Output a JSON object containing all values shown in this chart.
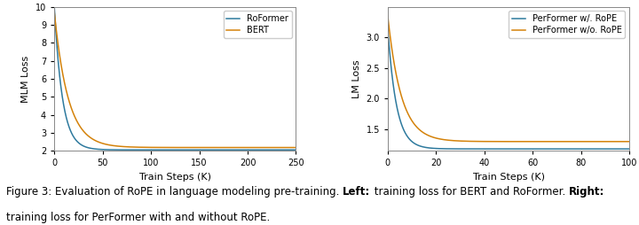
{
  "left": {
    "xlabel": "Train Steps (K)",
    "ylabel": "MLM Loss",
    "xlim": [
      0,
      250
    ],
    "ylim": [
      2,
      10
    ],
    "yticks": [
      2,
      3,
      4,
      5,
      6,
      7,
      8,
      9,
      10
    ],
    "xticks": [
      0,
      50,
      100,
      150,
      200,
      250
    ],
    "series": [
      {
        "label": "RoFormer",
        "color": "#2e7a9e",
        "y_start": 10.0,
        "decay_k": 0.12,
        "asymptote": 2.05
      },
      {
        "label": "BERT",
        "color": "#d4820a",
        "y_start": 9.7,
        "decay_k": 0.07,
        "asymptote": 2.18
      }
    ]
  },
  "right": {
    "xlabel": "Train Steps (K)",
    "ylabel": "LM Loss",
    "xlim": [
      0,
      100
    ],
    "ylim": [
      1.15,
      3.5
    ],
    "yticks": [
      1.5,
      2.0,
      2.5,
      3.0
    ],
    "xticks": [
      0,
      20,
      40,
      60,
      80,
      100
    ],
    "series": [
      {
        "label": "PerFormer w/. RoPE",
        "color": "#2e7a9e",
        "y_start": 3.15,
        "decay_k": 0.28,
        "asymptote": 1.18
      },
      {
        "label": "PerFormer w/o. RoPE",
        "color": "#d4820a",
        "y_start": 3.35,
        "decay_k": 0.18,
        "asymptote": 1.3
      }
    ]
  },
  "caption_normal1": "Figure 3: Evaluation of RoPE in language modeling pre-training. ",
  "caption_bold1": "Left:",
  "caption_normal2": " training loss for BERT and RoFormer. ",
  "caption_bold2": "Right:",
  "caption_normal3": "\ntraining loss for PerFormer with and without RoPE.",
  "fig_bg": "#ffffff",
  "ax_bg": "#ffffff",
  "spine_color": "#888888",
  "fontsize_label": 8,
  "fontsize_tick": 7,
  "fontsize_legend": 7,
  "fontsize_caption": 8.5
}
